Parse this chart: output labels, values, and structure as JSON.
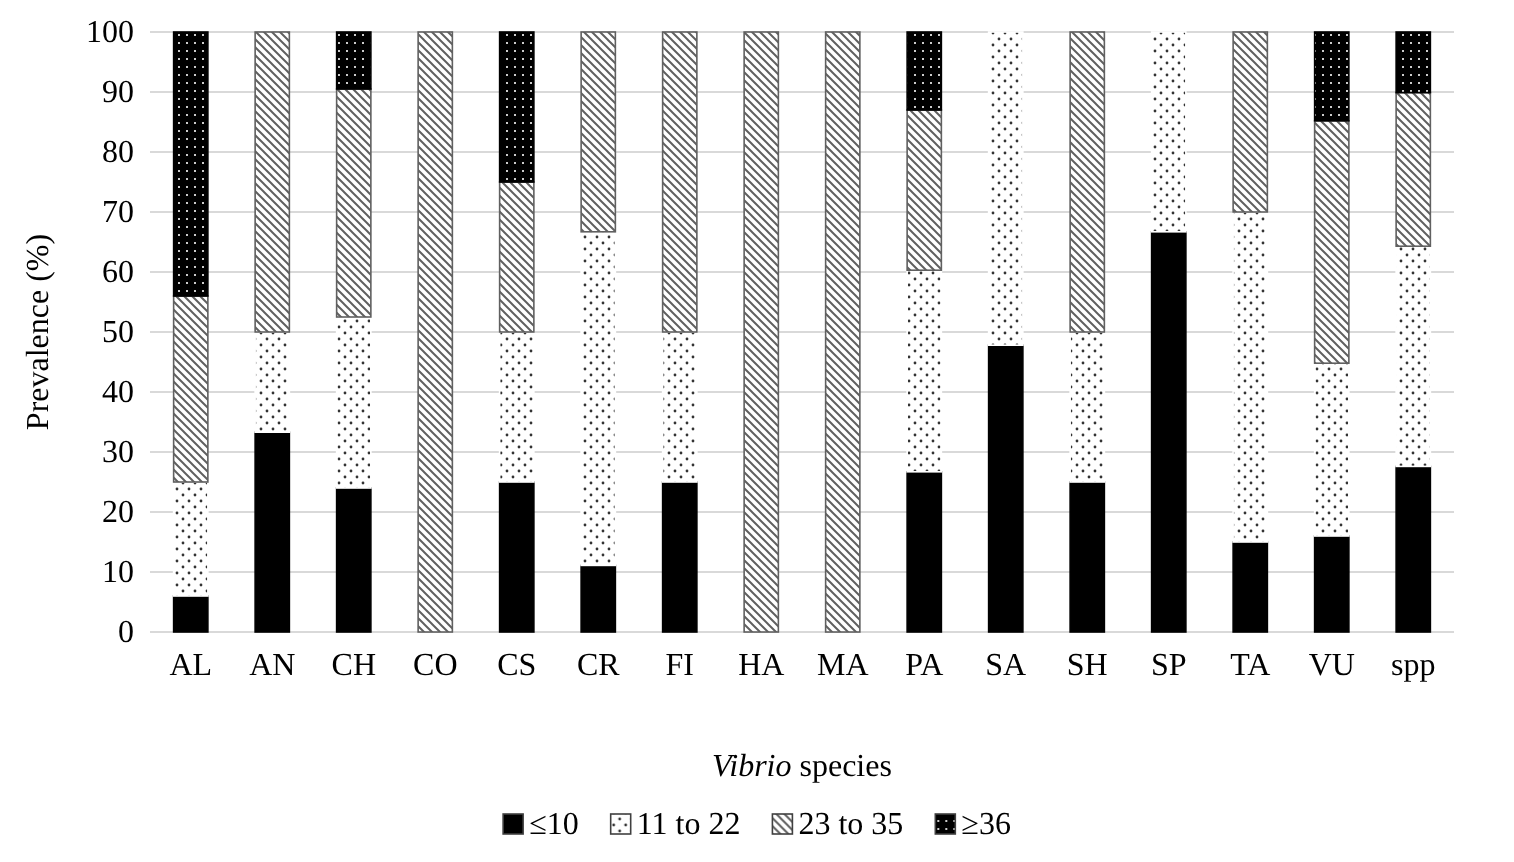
{
  "chart_data": {
    "type": "bar",
    "stacked": true,
    "xlabel": "Vibrio species",
    "ylabel": "Prevalence (%)",
    "categories": [
      "AL",
      "AN",
      "CH",
      "CO",
      "CS",
      "CR",
      "FI",
      "HA",
      "MA",
      "PA",
      "SA",
      "SH",
      "SP",
      "TA",
      "VU",
      "spp"
    ],
    "series": [
      {
        "name": "≤10",
        "color": "#000000",
        "values": [
          6,
          33.3,
          24,
          0,
          25,
          11.1,
          25,
          0,
          0,
          26.7,
          47.8,
          25,
          66.7,
          15,
          16,
          27.6
        ]
      },
      {
        "name": "11 to 22",
        "color": "#ffffff",
        "values": [
          19,
          16.7,
          28.5,
          0,
          25,
          55.6,
          25,
          0,
          0,
          33.6,
          52.2,
          25,
          33.3,
          55,
          28.8,
          36.7
        ]
      },
      {
        "name": "23 to 35",
        "color": "#606060",
        "values": [
          31,
          50,
          38,
          100,
          25,
          33.3,
          50,
          100,
          100,
          26.7,
          0,
          50,
          0,
          30,
          40.4,
          25.6
        ]
      },
      {
        "name": "≥36",
        "color": "#000000",
        "values": [
          44,
          0,
          9.5,
          0,
          25,
          0,
          0,
          0,
          0,
          13,
          0,
          0,
          0,
          0,
          14.8,
          10.1
        ]
      }
    ],
    "ylim": [
      0,
      100
    ],
    "yticks": [
      0,
      10,
      20,
      30,
      40,
      50,
      60,
      70,
      80,
      90,
      100
    ],
    "grid": "y",
    "legend": "bottom"
  }
}
